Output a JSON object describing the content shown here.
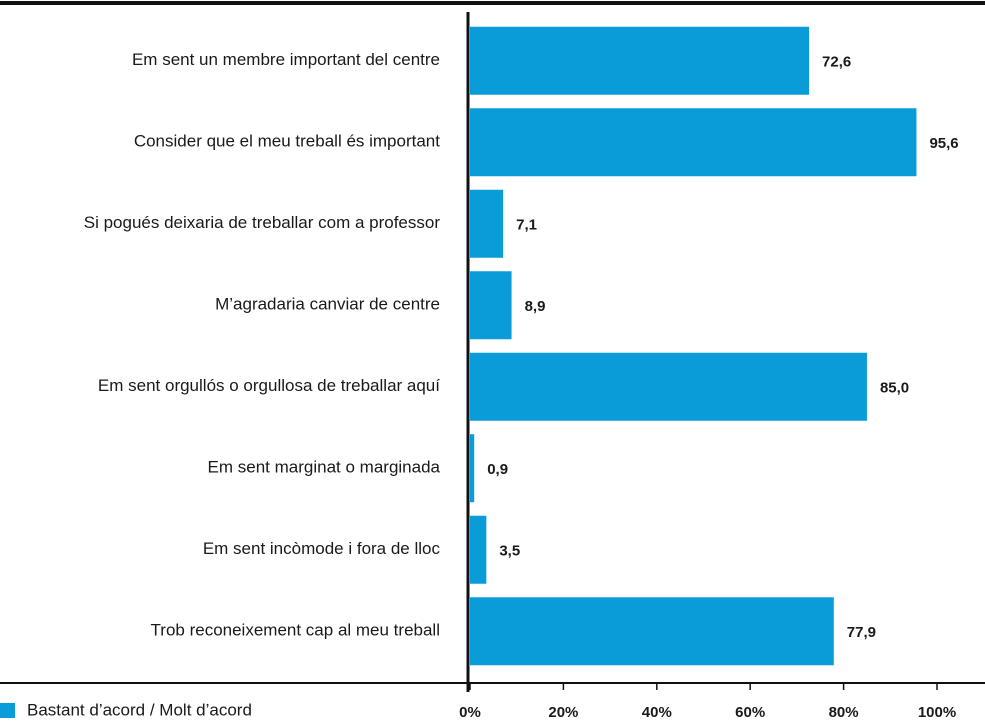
{
  "chart_data": {
    "type": "hbar",
    "categories": [
      "Em sent un membre important del centre",
      "Consider que el meu treball és important",
      "Si pogués deixaria de treballar com a professor",
      "M’agradaria canviar de  centre",
      "Em sent orgullós o orgullosa de treballar aquí",
      "Em sent marginat o marginada",
      "Em sent incòmode i fora de lloc",
      "Trob reconeixement cap al meu treball"
    ],
    "series": [
      {
        "name": "Bastant d’acord / Molt d’acord",
        "color": "#0a9cd8",
        "values": [
          72.6,
          95.6,
          7.1,
          8.9,
          85.0,
          0.9,
          3.5,
          77.9
        ],
        "value_labels": [
          "72,6",
          "95,6",
          "7,1",
          "8,9",
          "85,0",
          "0,9",
          "3,5",
          "77,9"
        ]
      }
    ],
    "xlim": [
      0,
      100
    ],
    "xticks": [
      {
        "value": 0,
        "label": "0%"
      },
      {
        "value": 20,
        "label": "20%"
      },
      {
        "value": 40,
        "label": "40%"
      },
      {
        "value": 60,
        "label": "60%"
      },
      {
        "value": 80,
        "label": "80%"
      },
      {
        "value": 100,
        "label": "100%"
      }
    ],
    "legend": "bottom-left"
  }
}
